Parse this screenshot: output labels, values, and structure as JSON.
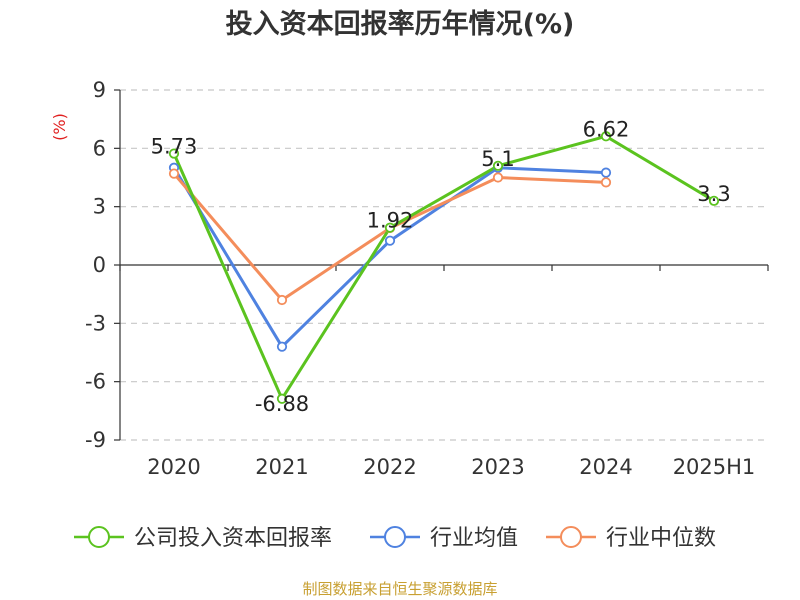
{
  "colors": {
    "company": "#5bc31f",
    "industry_avg": "#4f82e0",
    "industry_median": "#f48d5b",
    "grid": "#c8c8c8",
    "axis": "#333333",
    "unit": "#e02020",
    "source": "#c8a032"
  },
  "chart_data": {
    "type": "line",
    "title": "投入资本回报率历年情况(%)",
    "unit_label": "(%)",
    "categories": [
      "2020",
      "2021",
      "2022",
      "2023",
      "2024",
      "2025H1"
    ],
    "ylim": [
      -9,
      9
    ],
    "yticks": [
      "9",
      "6",
      "3",
      "0",
      "-3",
      "-6",
      "-9"
    ],
    "grid": true,
    "legend_position": "bottom",
    "series": [
      {
        "name": "公司投入资本回报率",
        "values": [
          5.73,
          -6.88,
          1.92,
          5.1,
          6.62,
          3.3
        ],
        "labels": [
          "5.73",
          "-6.88",
          "1.92",
          "5.1",
          "6.62",
          "3.3"
        ]
      },
      {
        "name": "行业均值",
        "values": [
          5.0,
          -4.2,
          1.25,
          5.0,
          4.75,
          null
        ]
      },
      {
        "name": "行业中位数",
        "values": [
          4.7,
          -1.8,
          1.9,
          4.5,
          4.25,
          null
        ]
      }
    ],
    "source": "制图数据来自恒生聚源数据库"
  }
}
